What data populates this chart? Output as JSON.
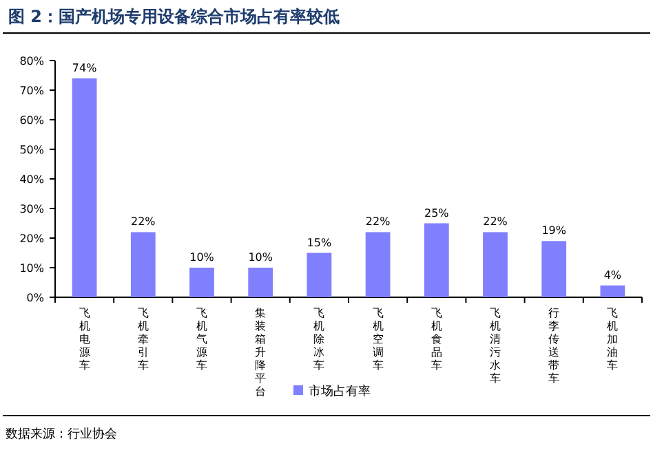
{
  "chart_data": {
    "type": "bar",
    "title": "图 2：国产机场专用设备综合市场占有率较低",
    "categories": [
      "飞机电源车",
      "飞机牵引车",
      "飞机气源车",
      "集装箱升降平台",
      "飞机除冰车",
      "飞机空调车",
      "飞机食品车",
      "飞机清污水车",
      "行李传送带车",
      "飞机加油车"
    ],
    "series": [
      {
        "name": "市场占有率",
        "color": "#8080ff",
        "values": [
          74,
          22,
          10,
          10,
          15,
          22,
          25,
          22,
          19,
          4
        ],
        "value_labels": [
          "74%",
          "22%",
          "10%",
          "10%",
          "15%",
          "22%",
          "25%",
          "22%",
          "19%",
          "4%"
        ]
      }
    ],
    "ylim": [
      0,
      80
    ],
    "yticks": [
      {
        "value": 0,
        "label": "0%"
      },
      {
        "value": 10,
        "label": "10%"
      },
      {
        "value": 20,
        "label": "20%"
      },
      {
        "value": 30,
        "label": "30%"
      },
      {
        "value": 40,
        "label": "40%"
      },
      {
        "value": 50,
        "label": "50%"
      },
      {
        "value": 60,
        "label": "60%"
      },
      {
        "value": 70,
        "label": "70%"
      },
      {
        "value": 80,
        "label": "80%"
      }
    ],
    "legend": "bottom",
    "grid": false,
    "annotations": [
      "数据来源：行业协会"
    ]
  }
}
